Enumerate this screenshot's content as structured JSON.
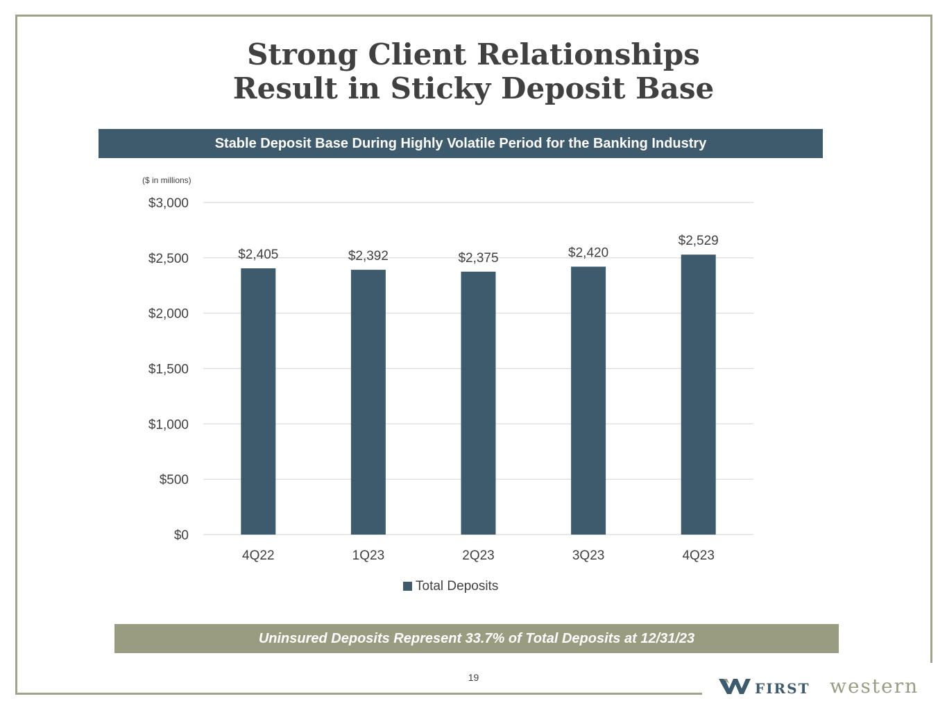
{
  "title_line1": "Strong Client Relationships",
  "title_line2": "Result in Sticky Deposit Base",
  "banner_text": "Stable Deposit Base During Highly Volatile Period for the Banking Industry",
  "footer_text": "Uninsured Deposits Represent 33.7% of Total Deposits at 12/31/23",
  "page_number": "19",
  "logo": {
    "first": "FIRST",
    "western": "western"
  },
  "colors": {
    "bar": "#3e5b6e",
    "banner": "#3e5b6e",
    "footer": "#9a9c82",
    "frame": "#a0a38a"
  },
  "chart_data": {
    "type": "bar",
    "unit_note": "($ in millions)",
    "categories": [
      "4Q22",
      "1Q23",
      "2Q23",
      "3Q23",
      "4Q23"
    ],
    "series": [
      {
        "name": "Total Deposits",
        "values": [
          2405,
          2392,
          2375,
          2420,
          2529
        ]
      }
    ],
    "data_labels": [
      "$2,405",
      "$2,392",
      "$2,375",
      "$2,420",
      "$2,529"
    ],
    "y_ticks": [
      0,
      500,
      1000,
      1500,
      2000,
      2500,
      3000
    ],
    "y_tick_labels": [
      "$0",
      "$500",
      "$1,000",
      "$1,500",
      "$2,000",
      "$2,500",
      "$3,000"
    ],
    "ylim": [
      0,
      3000
    ],
    "gridlines": true,
    "legend_position": "bottom"
  }
}
